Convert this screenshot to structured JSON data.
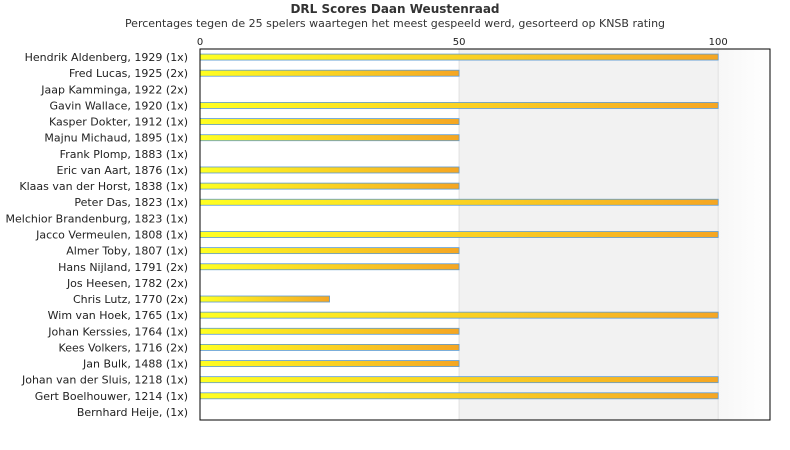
{
  "chart_data": {
    "type": "bar",
    "orientation": "horizontal",
    "title": "DRL Scores Daan Weustenraad",
    "subtitle": "Percentages tegen de 25 spelers waartegen het meest gespeeld werd, gesorteerd op KNSB rating",
    "xlim": [
      0,
      110
    ],
    "xticks": [
      0,
      50,
      100
    ],
    "grid": true,
    "categories": [
      "Hendrik Aldenberg, 1929 (1x)",
      "Fred Lucas, 1925 (2x)",
      "Jaap Kamminga, 1922 (2x)",
      "Gavin Wallace, 1920 (1x)",
      "Kasper Dokter, 1912 (1x)",
      "Majnu Michaud, 1895 (1x)",
      "Frank Plomp, 1883 (1x)",
      "Eric van Aart, 1876 (1x)",
      "Klaas van der Horst, 1838 (1x)",
      "Peter Das, 1823 (1x)",
      "Melchior Brandenburg, 1823 (1x)",
      "Jacco Vermeulen, 1808 (1x)",
      "Almer Toby, 1807 (1x)",
      "Hans Nijland, 1791 (2x)",
      "Jos Heesen, 1782 (2x)",
      "Chris Lutz, 1770 (2x)",
      "Wim van Hoek, 1765 (1x)",
      "Johan Kerssies, 1764 (1x)",
      "Kees Volkers, 1716 (2x)",
      "Jan Bulk, 1488 (1x)",
      "Johan van der Sluis, 1218 (1x)",
      "Gert Boelhouwer, 1214 (1x)",
      "Bernhard Heije,  (1x)"
    ],
    "values": [
      100,
      50,
      0,
      100,
      50,
      50,
      0,
      50,
      50,
      100,
      0,
      100,
      50,
      50,
      0,
      25,
      100,
      50,
      50,
      50,
      100,
      100,
      0
    ],
    "colors": {
      "bar_start": "#ffff22",
      "bar_end": "#f5a623",
      "bar_edge": "#5b9bd5",
      "band_alt": "#f2f2f2"
    }
  }
}
